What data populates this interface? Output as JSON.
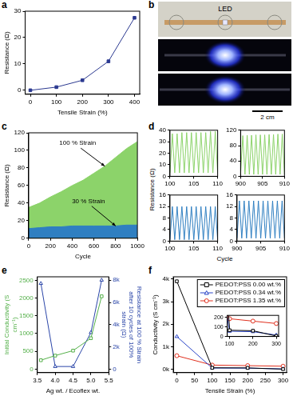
{
  "chart_data": [
    {
      "panel": "a",
      "type": "line",
      "xlabel": "Tensile Strain (%)",
      "ylabel": "Resistance (Ω)",
      "x": [
        0,
        100,
        200,
        300,
        400
      ],
      "values": [
        0,
        1.2,
        3.8,
        11,
        27.5
      ],
      "color": "#2b3990",
      "marker": "filled-square",
      "xlim": [
        -20,
        420
      ],
      "xticks": [
        0,
        100,
        200,
        300,
        400
      ],
      "ylim": [
        -1.5,
        30
      ],
      "yticks": [
        0,
        10,
        20,
        30
      ],
      "grid": false
    },
    {
      "panel": "c",
      "type": "area",
      "xlabel": "Cycle",
      "ylabel": "Resistance (Ω)",
      "x": [
        0,
        100,
        200,
        300,
        400,
        500,
        600,
        700,
        800,
        900,
        1000
      ],
      "series": [
        {
          "name": "100 % Strain",
          "color": "#8cd36a",
          "values": [
            35,
            40,
            47,
            53,
            60,
            66,
            74,
            82,
            92,
            102,
            110
          ]
        },
        {
          "name": "30 % Strain",
          "color": "#2f7fc1",
          "values": [
            11,
            12,
            13,
            13,
            14,
            14,
            14,
            14,
            14,
            15,
            15
          ]
        }
      ],
      "xlim": [
        0,
        1000
      ],
      "xticks": [
        0,
        200,
        400,
        600,
        800,
        1000
      ],
      "ylim": [
        0,
        120
      ],
      "yticks": [
        0,
        20,
        40,
        60,
        80,
        100,
        120
      ],
      "grid": false
    },
    {
      "panel": "d",
      "type": "line",
      "xlabel": "Cycle",
      "ylabel": "Resistance (Ω)",
      "grid": false,
      "subplots": [
        {
          "x": [
            100,
            100.5,
            101,
            101.5,
            102,
            102.5,
            103,
            103.5,
            104,
            104.5,
            105,
            105.5,
            106,
            106.5,
            107,
            107.5,
            108,
            108.5,
            109,
            109.5,
            110
          ],
          "xlim": [
            100,
            110
          ],
          "xticks": [
            100,
            105,
            110
          ],
          "ylim": [
            0,
            40
          ],
          "yticks": [
            0,
            10,
            20,
            30,
            40
          ],
          "series": [
            {
              "color": "#8cd36a",
              "values": [
                3,
                37,
                3,
                37,
                3,
                38,
                3,
                38,
                3,
                38,
                3,
                38,
                3,
                38,
                3,
                38,
                3,
                39,
                3,
                39,
                3
              ]
            }
          ]
        },
        {
          "x": [
            900,
            900.5,
            901,
            901.5,
            902,
            902.5,
            903,
            903.5,
            904,
            904.5,
            905,
            905.5,
            906,
            906.5,
            907,
            907.5,
            908,
            908.5,
            909,
            909.5,
            910
          ],
          "xlim": [
            900,
            910
          ],
          "xticks": [
            900,
            905,
            910
          ],
          "ylim": [
            0,
            120
          ],
          "yticks": [
            0,
            40,
            80,
            120
          ],
          "series": [
            {
              "color": "#8cd36a",
              "values": [
                5,
                106,
                5,
                107,
                5,
                107,
                5,
                108,
                5,
                108,
                5,
                108,
                5,
                109,
                5,
                109,
                5,
                110,
                5,
                110,
                5
              ]
            }
          ]
        },
        {
          "x": [
            100,
            100.5,
            101,
            101.5,
            102,
            102.5,
            103,
            103.5,
            104,
            104.5,
            105,
            105.5,
            106,
            106.5,
            107,
            107.5,
            108,
            108.5,
            109,
            109.5,
            110
          ],
          "xlim": [
            100,
            110
          ],
          "xticks": [
            100,
            105,
            110
          ],
          "ylim": [
            0,
            16
          ],
          "yticks": [
            0,
            4,
            8,
            12,
            16
          ],
          "series": [
            {
              "color": "#2f7fc1",
              "values": [
                0.5,
                12,
                0.5,
                12,
                0.5,
                12,
                0.5,
                12,
                0.5,
                12,
                0.5,
                12,
                0.5,
                12,
                0.5,
                12,
                0.5,
                12,
                0.5,
                12,
                0.5
              ]
            }
          ]
        },
        {
          "x": [
            900,
            900.5,
            901,
            901.5,
            902,
            902.5,
            903,
            903.5,
            904,
            904.5,
            905,
            905.5,
            906,
            906.5,
            907,
            907.5,
            908,
            908.5,
            909,
            909.5,
            910
          ],
          "xlim": [
            900,
            910
          ],
          "xticks": [
            900,
            905,
            910
          ],
          "ylim": [
            0,
            16
          ],
          "yticks": [
            0,
            4,
            8,
            12,
            16
          ],
          "series": [
            {
              "color": "#2f7fc1",
              "values": [
                1,
                14,
                1,
                14,
                1,
                14,
                1,
                14,
                1,
                14,
                1,
                14,
                1,
                14,
                1,
                14,
                1,
                14,
                1,
                14,
                1
              ]
            }
          ]
        }
      ]
    },
    {
      "panel": "e",
      "type": "line",
      "xlabel": "Ag wt. / Ecoflex wt.",
      "ylabel": "Initial Conductivity (S cm⁻¹)",
      "y2label": "Resistance at 100 % Strain after 10 cycles of 100% strain (Ω)",
      "x": [
        3.6,
        4.0,
        4.5,
        5.0,
        5.3
      ],
      "series": [
        {
          "color": "#55b04a",
          "marker": "open-square",
          "values": [
            250,
            380,
            520,
            870,
            2050
          ]
        },
        {
          "color": "#2a45a8",
          "marker": "open-triangle",
          "axis": "y2",
          "values": [
            7700,
            250,
            250,
            3300,
            8000
          ]
        }
      ],
      "xlim": [
        3.5,
        5.5
      ],
      "xticks": [
        3.5,
        {
          "value": 4,
          "label": "4.0"
        },
        4.5,
        {
          "value": 5,
          "label": "5.0"
        },
        5.5
      ],
      "ylim": [
        -100,
        2600
      ],
      "yticks": [
        0,
        500,
        1000,
        1500,
        2000,
        2500
      ],
      "y2lim": [
        -300,
        8300
      ],
      "y2ticks": [
        0,
        {
          "value": 2000,
          "label": "2k"
        },
        {
          "value": 4000,
          "label": "4k"
        },
        {
          "value": 6000,
          "label": "6k"
        },
        {
          "value": 8000,
          "label": "8k"
        }
      ],
      "grid": false
    },
    {
      "panel": "f",
      "type": "line",
      "xlabel": "Tensile Strain (%)",
      "ylabel": "Conductivity (S cm⁻¹)",
      "x": [
        0,
        100,
        200,
        300
      ],
      "series": [
        {
          "name": "PEDOT:PSS 0.00 wt.%",
          "color": "#000000",
          "marker": "open-square",
          "values": [
            3900,
            65,
            60,
            5
          ]
        },
        {
          "name": "PEDOT:PSS 0.34 wt.%",
          "color": "#2a45c8",
          "marker": "open-triangle",
          "values": [
            1450,
            55,
            50,
            15
          ]
        },
        {
          "name": "PEDOT:PSS 1.35 wt.%",
          "color": "#e0301e",
          "marker": "open-circle",
          "values": [
            600,
            185,
            160,
            135
          ]
        }
      ],
      "xlim": [
        -10,
        310
      ],
      "xticks": [
        0,
        50,
        100,
        150,
        200,
        250,
        300
      ],
      "ylim": [
        -150,
        4100
      ],
      "yticks": [
        {
          "value": 0,
          "label": "0k"
        },
        {
          "value": 1000,
          "label": "1k"
        },
        {
          "value": 2000,
          "label": "2k"
        },
        {
          "value": 3000,
          "label": "3k"
        },
        {
          "value": 4000,
          "label": "4k"
        }
      ],
      "grid": false,
      "legend": "upper right",
      "inset": {
        "xlim": [
          90,
          310
        ],
        "xticks": [
          100,
          200,
          300
        ],
        "ylim": [
          0,
          220
        ],
        "yticks": [
          0,
          100,
          200
        ]
      }
    }
  ],
  "photo": {
    "panel": "b",
    "label": "LED",
    "scale_bar": "2 cm"
  }
}
